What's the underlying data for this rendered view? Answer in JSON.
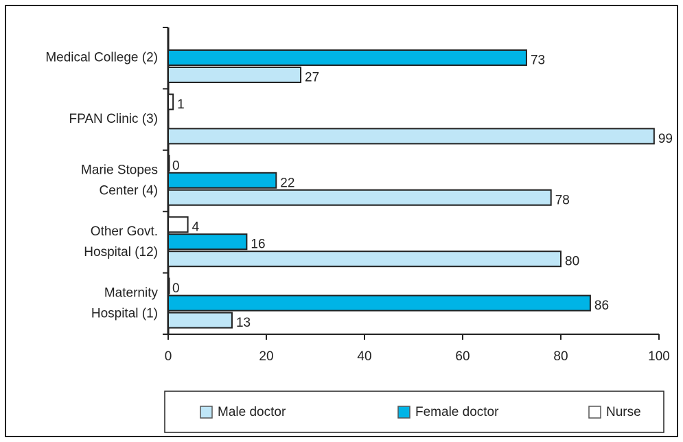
{
  "chart_data": {
    "type": "bar",
    "orientation": "horizontal",
    "categories": [
      [
        "Medical College (2)"
      ],
      [
        "FPAN Clinic (3)"
      ],
      [
        "Marie Stopes",
        "Center (4)"
      ],
      [
        "Other Govt.",
        "Hospital (12)"
      ],
      [
        "Maternity",
        "Hospital (1)"
      ]
    ],
    "series": [
      {
        "name": "Male doctor",
        "color": "#bfe6f7",
        "values": [
          27,
          99,
          78,
          80,
          13
        ]
      },
      {
        "name": "Female doctor",
        "color": "#00b4e6",
        "values": [
          73,
          null,
          22,
          16,
          86
        ]
      },
      {
        "name": "Nurse",
        "color": "#ffffff",
        "values": [
          null,
          1,
          0,
          4,
          0
        ]
      }
    ],
    "xlim": [
      0,
      100
    ],
    "xticks": [
      0,
      20,
      40,
      60,
      80,
      100
    ],
    "legend": "bottom"
  }
}
